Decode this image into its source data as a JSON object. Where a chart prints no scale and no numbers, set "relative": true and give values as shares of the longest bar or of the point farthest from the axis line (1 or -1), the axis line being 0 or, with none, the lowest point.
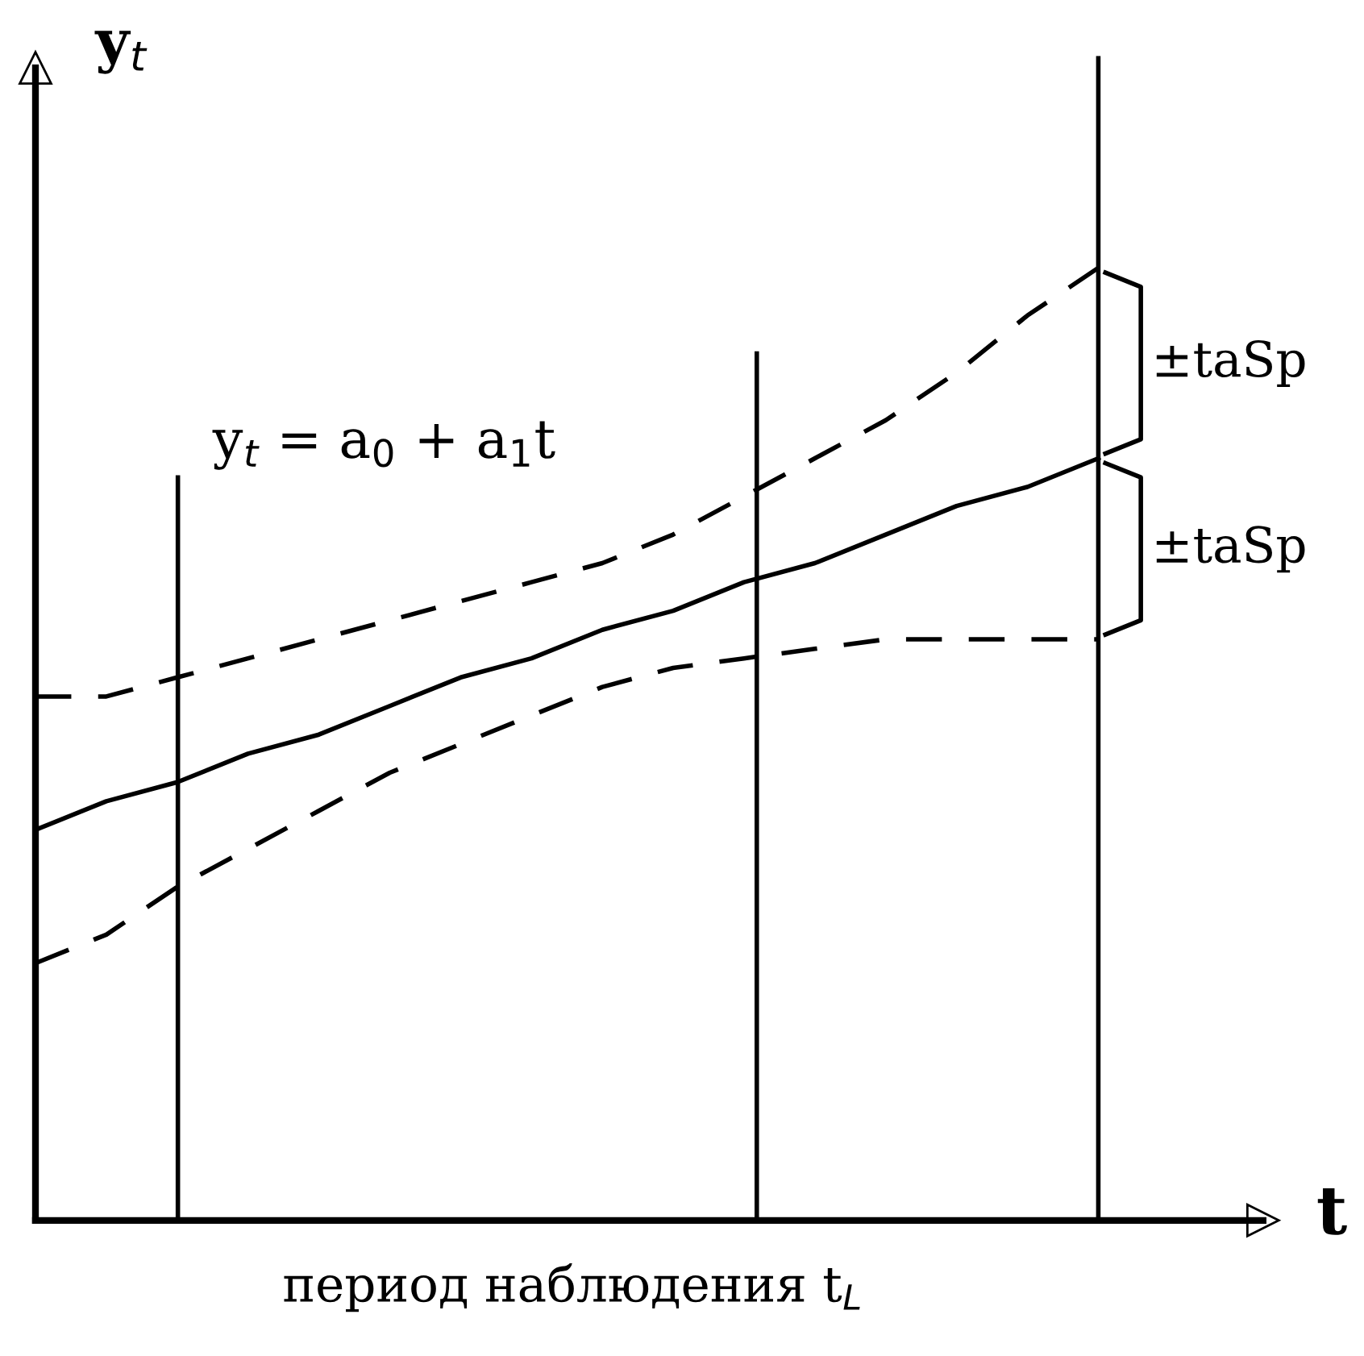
{
  "chart_data": {
    "type": "line",
    "relative": true,
    "xlabel": "t",
    "ylabel": "y$_{t}$",
    "categories": [
      null,
      null,
      null,
      null,
      null,
      null,
      null,
      null,
      null,
      null,
      null,
      null,
      null,
      null,
      null,
      null
    ],
    "series": [
      {
        "color": "#000000",
        "line_style": "solid",
        "values": [
          0.41,
          0.44,
          0.46,
          0.49,
          0.51,
          0.54,
          0.57,
          0.59,
          0.62,
          0.64,
          0.67,
          0.69,
          0.72,
          0.75,
          0.77,
          0.8
        ]
      },
      {
        "color": "#000000",
        "line_style": "dashed",
        "values": [
          0.55,
          0.55,
          0.57,
          0.59,
          0.61,
          0.63,
          0.65,
          0.67,
          0.69,
          0.72,
          0.76,
          0.8,
          0.84,
          0.89,
          0.95,
          1
        ]
      },
      {
        "color": "#000000",
        "line_style": "dashed",
        "values": [
          0.27,
          0.3,
          0.35,
          0.39,
          0.43,
          0.47,
          0.5,
          0.53,
          0.56,
          0.58,
          0.59,
          0.6,
          0.61,
          0.61,
          0.61,
          0.61
        ]
      }
    ],
    "annotations": [
      "y$_{t}$ = a$_{0}$ + a$_{1}$t",
      "±taSp",
      "±taSp",
      "период наблюдения t$_{L}$"
    ]
  }
}
